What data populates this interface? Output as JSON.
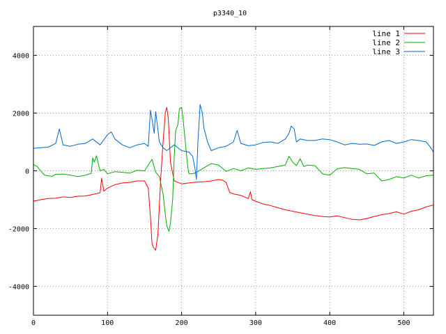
{
  "chart_data": {
    "type": "line",
    "title": "p3340_10",
    "xlabel": "",
    "ylabel": "",
    "xlim": [
      0,
      540
    ],
    "ylim": [
      -5000,
      5000
    ],
    "grid": true,
    "legend_position": "top-right",
    "x_ticks": [
      0,
      100,
      200,
      300,
      400,
      500
    ],
    "x_tick_labels": [
      "0",
      "100",
      "200",
      "300",
      "400",
      "500"
    ],
    "y_ticks": [
      -4000,
      -2000,
      0,
      2000,
      4000
    ],
    "y_tick_labels": [
      "-4000",
      "-2000",
      "0",
      "2000",
      "4000"
    ],
    "series": [
      {
        "name": "line 1",
        "color": "#ff0000",
        "points": [
          [
            0,
            -1050
          ],
          [
            10,
            -1000
          ],
          [
            20,
            -960
          ],
          [
            30,
            -950
          ],
          [
            40,
            -900
          ],
          [
            50,
            -920
          ],
          [
            60,
            -880
          ],
          [
            70,
            -870
          ],
          [
            80,
            -820
          ],
          [
            90,
            -760
          ],
          [
            92,
            -250
          ],
          [
            95,
            -700
          ],
          [
            100,
            -600
          ],
          [
            110,
            -480
          ],
          [
            120,
            -420
          ],
          [
            130,
            -400
          ],
          [
            140,
            -350
          ],
          [
            150,
            -350
          ],
          [
            155,
            -600
          ],
          [
            158,
            -1600
          ],
          [
            160,
            -2500
          ],
          [
            162,
            -2650
          ],
          [
            165,
            -2750
          ],
          [
            168,
            -2200
          ],
          [
            170,
            -1200
          ],
          [
            172,
            -200
          ],
          [
            175,
            1000
          ],
          [
            178,
            2000
          ],
          [
            180,
            2200
          ],
          [
            182,
            1800
          ],
          [
            185,
            300
          ],
          [
            190,
            -350
          ],
          [
            200,
            -450
          ],
          [
            210,
            -420
          ],
          [
            220,
            -390
          ],
          [
            230,
            -380
          ],
          [
            240,
            -350
          ],
          [
            250,
            -300
          ],
          [
            255,
            -320
          ],
          [
            260,
            -400
          ],
          [
            265,
            -750
          ],
          [
            270,
            -800
          ],
          [
            280,
            -850
          ],
          [
            290,
            -960
          ],
          [
            293,
            -720
          ],
          [
            295,
            -1000
          ],
          [
            300,
            -1050
          ],
          [
            310,
            -1150
          ],
          [
            320,
            -1200
          ],
          [
            330,
            -1280
          ],
          [
            340,
            -1350
          ],
          [
            350,
            -1400
          ],
          [
            360,
            -1450
          ],
          [
            370,
            -1500
          ],
          [
            380,
            -1550
          ],
          [
            390,
            -1580
          ],
          [
            400,
            -1600
          ],
          [
            410,
            -1560
          ],
          [
            420,
            -1620
          ],
          [
            430,
            -1680
          ],
          [
            440,
            -1700
          ],
          [
            450,
            -1650
          ],
          [
            460,
            -1580
          ],
          [
            470,
            -1520
          ],
          [
            480,
            -1480
          ],
          [
            490,
            -1420
          ],
          [
            500,
            -1500
          ],
          [
            510,
            -1400
          ],
          [
            520,
            -1350
          ],
          [
            530,
            -1250
          ],
          [
            540,
            -1180
          ]
        ]
      },
      {
        "name": "line 2",
        "color": "#00aa00",
        "points": [
          [
            0,
            220
          ],
          [
            5,
            150
          ],
          [
            10,
            -10
          ],
          [
            15,
            -150
          ],
          [
            20,
            -170
          ],
          [
            25,
            -190
          ],
          [
            30,
            -120
          ],
          [
            40,
            -110
          ],
          [
            50,
            -150
          ],
          [
            60,
            -200
          ],
          [
            70,
            -150
          ],
          [
            78,
            -90
          ],
          [
            80,
            450
          ],
          [
            82,
            300
          ],
          [
            85,
            520
          ],
          [
            88,
            200
          ],
          [
            90,
            0
          ],
          [
            95,
            50
          ],
          [
            100,
            -100
          ],
          [
            110,
            -30
          ],
          [
            120,
            -50
          ],
          [
            130,
            -80
          ],
          [
            140,
            20
          ],
          [
            150,
            0
          ],
          [
            160,
            400
          ],
          [
            165,
            -50
          ],
          [
            170,
            -200
          ],
          [
            175,
            -800
          ],
          [
            178,
            -1500
          ],
          [
            180,
            -1900
          ],
          [
            183,
            -2100
          ],
          [
            185,
            -1800
          ],
          [
            188,
            -1000
          ],
          [
            190,
            500
          ],
          [
            192,
            1400
          ],
          [
            195,
            1600
          ],
          [
            197,
            2150
          ],
          [
            200,
            2200
          ],
          [
            202,
            1800
          ],
          [
            205,
            1000
          ],
          [
            208,
            200
          ],
          [
            210,
            -100
          ],
          [
            215,
            -100
          ],
          [
            220,
            -50
          ],
          [
            230,
            100
          ],
          [
            240,
            250
          ],
          [
            250,
            200
          ],
          [
            260,
            -20
          ],
          [
            270,
            80
          ],
          [
            280,
            0
          ],
          [
            290,
            100
          ],
          [
            300,
            50
          ],
          [
            310,
            80
          ],
          [
            320,
            100
          ],
          [
            330,
            150
          ],
          [
            340,
            200
          ],
          [
            345,
            500
          ],
          [
            350,
            300
          ],
          [
            355,
            180
          ],
          [
            360,
            420
          ],
          [
            365,
            150
          ],
          [
            370,
            200
          ],
          [
            380,
            180
          ],
          [
            390,
            -100
          ],
          [
            400,
            -150
          ],
          [
            410,
            70
          ],
          [
            420,
            110
          ],
          [
            430,
            80
          ],
          [
            440,
            50
          ],
          [
            450,
            -100
          ],
          [
            460,
            -80
          ],
          [
            470,
            -350
          ],
          [
            480,
            -300
          ],
          [
            490,
            -200
          ],
          [
            500,
            -250
          ],
          [
            510,
            -150
          ],
          [
            520,
            -250
          ],
          [
            530,
            -170
          ],
          [
            540,
            -150
          ]
        ]
      },
      {
        "name": "line 3",
        "color": "#0066cc",
        "points": [
          [
            0,
            780
          ],
          [
            10,
            800
          ],
          [
            20,
            820
          ],
          [
            30,
            950
          ],
          [
            35,
            1450
          ],
          [
            40,
            900
          ],
          [
            50,
            850
          ],
          [
            60,
            920
          ],
          [
            70,
            950
          ],
          [
            80,
            1100
          ],
          [
            90,
            900
          ],
          [
            100,
            1250
          ],
          [
            105,
            1350
          ],
          [
            110,
            1100
          ],
          [
            120,
            900
          ],
          [
            130,
            800
          ],
          [
            140,
            900
          ],
          [
            150,
            950
          ],
          [
            155,
            850
          ],
          [
            158,
            2100
          ],
          [
            160,
            1800
          ],
          [
            163,
            1300
          ],
          [
            165,
            2050
          ],
          [
            170,
            1000
          ],
          [
            175,
            800
          ],
          [
            180,
            700
          ],
          [
            190,
            900
          ],
          [
            200,
            700
          ],
          [
            210,
            650
          ],
          [
            215,
            500
          ],
          [
            218,
            100
          ],
          [
            220,
            -300
          ],
          [
            222,
            1000
          ],
          [
            225,
            2300
          ],
          [
            228,
            2000
          ],
          [
            230,
            1500
          ],
          [
            235,
            1000
          ],
          [
            240,
            700
          ],
          [
            250,
            800
          ],
          [
            260,
            850
          ],
          [
            270,
            1000
          ],
          [
            275,
            1400
          ],
          [
            280,
            950
          ],
          [
            290,
            870
          ],
          [
            300,
            900
          ],
          [
            310,
            980
          ],
          [
            320,
            1000
          ],
          [
            330,
            950
          ],
          [
            340,
            1100
          ],
          [
            345,
            1300
          ],
          [
            348,
            1550
          ],
          [
            352,
            1450
          ],
          [
            355,
            1000
          ],
          [
            360,
            1100
          ],
          [
            370,
            1050
          ],
          [
            380,
            1050
          ],
          [
            390,
            1100
          ],
          [
            400,
            1080
          ],
          [
            410,
            1000
          ],
          [
            420,
            900
          ],
          [
            430,
            950
          ],
          [
            440,
            920
          ],
          [
            450,
            930
          ],
          [
            460,
            880
          ],
          [
            470,
            1000
          ],
          [
            480,
            1050
          ],
          [
            490,
            950
          ],
          [
            500,
            1000
          ],
          [
            510,
            1080
          ],
          [
            520,
            1050
          ],
          [
            530,
            1000
          ],
          [
            535,
            850
          ],
          [
            540,
            650
          ]
        ]
      }
    ]
  }
}
